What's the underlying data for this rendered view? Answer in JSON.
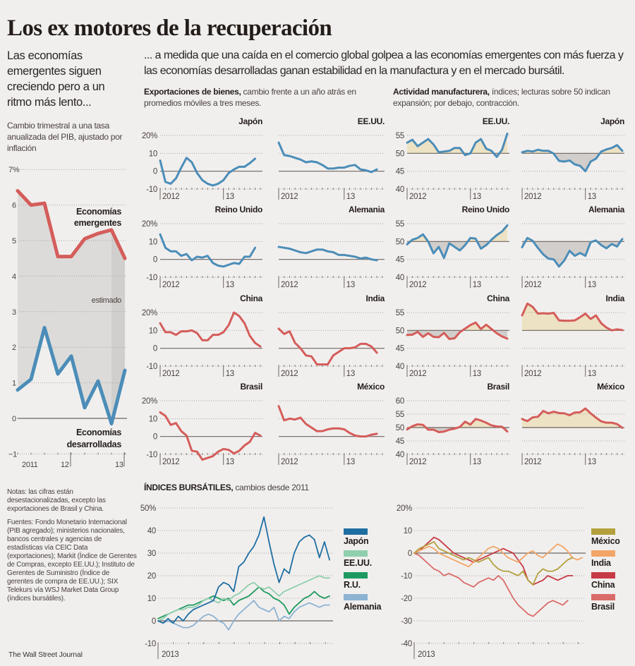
{
  "header": {
    "title": "Los ex motores de la recuperación"
  },
  "intro": {
    "left": "Las economías emergentes siguen creciendo pero a un ritmo más lento...",
    "right": "... a medida que una caída en el comercio global golpea a las economías emergentes con más fuerza y las economías desarrolladas ganan estabilidad en la manufactura y en el mercado bursátil."
  },
  "sections": {
    "gdp_subtitle": "Cambio trimestral a una tasa anualizada del PIB, ajustado por inflación",
    "exports_bold": "Exportaciones de bienes,",
    "exports_rest": " cambio frente a un año atrás en promedios móviles a tres meses.",
    "pmi_bold": "Actividad manufacturera,",
    "pmi_rest": " índices; lecturas sobre 50 indican expansión; por debajo, contracción.",
    "stocks_bold": "ÍNDICES BURSÁTILES,",
    "stocks_rest": " cambios desde 2011"
  },
  "notes": {
    "notes": "Notas: las cifras están desestacionalizadas, excepto las exportaciones de Brasil y China.",
    "sources": "Fuentes: Fondo Monetario Internacional (PIB agregado); ministerios nacionales, bancos centrales y agencias de estadísticas vía CEIC Data (exportaciones); Markit (Índice de Gerentes de Compras, excepto EE.UU.); Instituto de Gerentes de Suministro (Índice de gerentes de compra de EE.UU.); SIX Telekurs vía WSJ Market Data Group (índices bursátiles).",
    "credit": "The Wall Street Journal"
  },
  "colors": {
    "blue": "#4b8db8",
    "red": "#d45d5a",
    "above_fill": "#ede2c3",
    "below_fill": "#d2cecb",
    "band": "#dddbd9",
    "band_estimate": "#d1cfcd"
  },
  "chart_data": [
    {
      "id": "gdp",
      "type": "line",
      "ylim": [
        -1,
        7
      ],
      "yticks": [
        -1,
        0,
        1,
        2,
        3,
        4,
        5,
        6,
        7
      ],
      "ytick_labels": [
        "−1",
        "0",
        "1",
        "2",
        "3",
        "4",
        "5",
        "6",
        "7%"
      ],
      "xtick_labels": [
        "2011",
        "12",
        "13"
      ],
      "annotation": "estimado",
      "series": [
        {
          "name": "Economías emergentes",
          "color": "#d45d5a",
          "values": [
            6.4,
            6.0,
            6.05,
            4.55,
            4.55,
            5.05,
            5.2,
            5.3,
            4.5
          ]
        },
        {
          "name": "Economías desarrolladas",
          "color": "#4b8db8",
          "values": [
            0.8,
            1.1,
            2.55,
            1.25,
            1.75,
            0.3,
            1.05,
            -0.15,
            1.35
          ]
        }
      ]
    },
    {
      "id": "exports",
      "type": "line",
      "ylim": [
        -10,
        20
      ],
      "yticks": [
        -10,
        0,
        10,
        20
      ],
      "ytick_labels": [
        "-10",
        "0",
        "10",
        "20%"
      ],
      "baseline": 0,
      "xtick_labels": [
        "2012",
        "13"
      ],
      "panels": [
        {
          "title": "Japón",
          "color": "#4b8db8",
          "values": [
            6,
            -6,
            -7,
            -4,
            2,
            7.5,
            5,
            -1,
            -5,
            -7,
            -8,
            -7,
            -5,
            -1,
            1,
            2.5,
            2.5,
            4.5,
            7
          ]
        },
        {
          "title": "EE.UU.",
          "color": "#4b8db8",
          "values": [
            16,
            9,
            8.5,
            7.5,
            6.5,
            5,
            5.5,
            5,
            3.5,
            1.5,
            1.5,
            2,
            2,
            3,
            3.5,
            1,
            0.5,
            -0.5,
            1
          ]
        },
        {
          "title": "Reino Unido",
          "color": "#4b8db8",
          "values": [
            14,
            6.5,
            4.5,
            4.5,
            2,
            3,
            -0.5,
            1.5,
            1,
            2,
            -2,
            -3.5,
            -4,
            -3,
            -2,
            -2.5,
            1.5,
            1.5,
            6.5
          ]
        },
        {
          "title": "Alemania",
          "color": "#4b8db8",
          "values": [
            7,
            6.5,
            6,
            5,
            4,
            3.5,
            4.5,
            5.5,
            5.5,
            4.5,
            4,
            2.5,
            2.5,
            2,
            1.5,
            0.5,
            1,
            0,
            -0.5
          ]
        },
        {
          "title": "China",
          "color": "#d45d5a",
          "values": [
            14,
            9,
            9,
            7.5,
            9.5,
            9.5,
            10,
            8.5,
            4.5,
            4.5,
            7.5,
            7.5,
            9,
            13,
            20,
            18,
            14,
            7,
            3,
            1
          ]
        },
        {
          "title": "India",
          "color": "#d45d5a",
          "values": [
            11,
            8,
            9.5,
            3,
            0,
            -4,
            -4.5,
            -9,
            -9,
            -9,
            -4,
            -2,
            0,
            0,
            0.5,
            2.5,
            2.5,
            1,
            -2.5
          ]
        },
        {
          "title": "Brasil",
          "color": "#d45d5a",
          "values": [
            13.5,
            11.5,
            6.5,
            7.5,
            3,
            0.5,
            -8,
            -8.5,
            -13,
            -12,
            -11,
            -8.5,
            -7,
            -7.5,
            -9.5,
            -8,
            -5,
            -3,
            2,
            0.5
          ]
        },
        {
          "title": "México",
          "color": "#d45d5a",
          "values": [
            17,
            9,
            10,
            9.5,
            10.5,
            7,
            5,
            3,
            3,
            4,
            4.5,
            4.5,
            4,
            2,
            0.5,
            0,
            0,
            1,
            1.5
          ]
        }
      ]
    },
    {
      "id": "manufacturing",
      "type": "area",
      "baseline": 50,
      "xtick_labels": [
        "2012",
        "13"
      ],
      "panels": [
        {
          "title": "EE.UU.",
          "color": "#4b8db8",
          "ylim": [
            40,
            55
          ],
          "yticks": [
            40,
            45,
            50,
            55
          ],
          "values": [
            53,
            53.8,
            52,
            53,
            54,
            52.5,
            50.3,
            50.5,
            50.7,
            51.5,
            51.5,
            49.5,
            50,
            53,
            54,
            51.3,
            50.7,
            49,
            51,
            55.5
          ]
        },
        {
          "title": "Japón",
          "color": "#4b8db8",
          "ylim": [
            40,
            55
          ],
          "yticks": [
            40,
            45,
            50,
            55
          ],
          "values": [
            50.3,
            50.7,
            50.5,
            51,
            50.7,
            50.7,
            49.9,
            47.9,
            47.7,
            48,
            46.9,
            46.5,
            45,
            47.7,
            48.5,
            50.5,
            51.1,
            51.5,
            52.3,
            50.7
          ]
        },
        {
          "title": "Reino Unido",
          "color": "#4b8db8",
          "ylim": [
            40,
            55
          ],
          "yticks": [
            40,
            45,
            50,
            55
          ],
          "values": [
            49.2,
            50.5,
            51,
            52,
            50,
            46.7,
            48.5,
            45.4,
            49.5,
            48.5,
            47.5,
            49,
            51,
            50.8,
            48,
            49,
            50.5,
            51.8,
            52.8,
            54.5
          ]
        },
        {
          "title": "Alemania",
          "color": "#4b8db8",
          "ylim": [
            40,
            55
          ],
          "yticks": [
            40,
            45,
            50,
            55
          ],
          "values": [
            48.4,
            51,
            50.2,
            48.2,
            46.4,
            45.2,
            45,
            43,
            44.7,
            47.4,
            46,
            46.8,
            46,
            49.8,
            50.3,
            49,
            48.1,
            49.3,
            48.6,
            50.7
          ]
        },
        {
          "title": "China",
          "color": "#d45d5a",
          "ylim": [
            40,
            55
          ],
          "yticks": [
            40,
            45,
            50,
            55
          ],
          "values": [
            48.7,
            48.8,
            49.6,
            48.2,
            49.2,
            48.2,
            48.1,
            49.3,
            47.6,
            47.8,
            49.5,
            50.5,
            51.5,
            52.2,
            50.4,
            51.6,
            50.4,
            49.2,
            48.3,
            47.7
          ]
        },
        {
          "title": "India",
          "color": "#d45d5a",
          "ylim": [
            40,
            55
          ],
          "yticks": [
            40,
            45,
            50,
            55
          ],
          "values": [
            54.2,
            57.5,
            56.6,
            54.7,
            54.8,
            54.7,
            54.9,
            52.8,
            52.7,
            52.7,
            52.8,
            53.7,
            54.7,
            53.2,
            54.2,
            52,
            50.8,
            50,
            50.3,
            50.1
          ]
        },
        {
          "title": "Brasil",
          "color": "#d45d5a",
          "ylim": [
            40,
            60
          ],
          "yticks": [
            40,
            45,
            50,
            55,
            60
          ],
          "values": [
            49.3,
            50.5,
            51.2,
            51,
            49.2,
            49.2,
            48.3,
            48.5,
            49.2,
            49.6,
            50.2,
            52.2,
            51.1,
            53.2,
            52.6,
            51.8,
            50.8,
            50.4,
            50.3,
            48.5
          ]
        },
        {
          "title": "México",
          "color": "#d45d5a",
          "ylim": [
            40,
            60
          ],
          "yticks": [
            40,
            45,
            50,
            55,
            60
          ],
          "values": [
            53.2,
            52.4,
            53.8,
            54,
            56.2,
            55.3,
            55.9,
            55.4,
            55.3,
            54.6,
            55.6,
            55.7,
            57.1,
            55.3,
            53.7,
            52.3,
            51.8,
            51.8,
            51.3,
            49.9
          ]
        }
      ]
    },
    {
      "id": "stocks_developed",
      "type": "line",
      "ylim": [
        -10,
        50
      ],
      "yticks": [
        -10,
        0,
        10,
        20,
        30,
        40,
        50
      ],
      "ytick_labels": [
        "-10",
        "0",
        "10",
        "20",
        "30",
        "40",
        "50%"
      ],
      "xtick_labels": [
        "2013"
      ],
      "legend": "right",
      "series": [
        {
          "name": "Japón",
          "color": "#1f6ea2",
          "values": [
            0,
            -1,
            1,
            -1,
            2,
            0,
            3,
            5,
            6,
            7,
            8,
            9,
            15,
            17,
            16,
            13,
            24,
            26,
            30,
            33,
            38,
            46,
            35,
            25,
            17,
            23,
            21,
            30,
            35,
            37,
            38,
            36,
            28,
            35,
            27
          ]
        },
        {
          "name": "EE.UU.",
          "color": "#8fcfad",
          "values": [
            0,
            1,
            3,
            4,
            5,
            5,
            6,
            6,
            7,
            9,
            10,
            9,
            8,
            10,
            9,
            11,
            12,
            14,
            16,
            17,
            15,
            14,
            15,
            13,
            11,
            13,
            14,
            15,
            16,
            17,
            18,
            19,
            20,
            19,
            19
          ]
        },
        {
          "name": "R.U.",
          "color": "#1f9a5f",
          "values": [
            1,
            2,
            3,
            4,
            5,
            6,
            7,
            7,
            8,
            9,
            10,
            11,
            10,
            9,
            10,
            7,
            9,
            10,
            11,
            13,
            15,
            13,
            12,
            10,
            9,
            7,
            3,
            6,
            8,
            10,
            11,
            13,
            11,
            10,
            11
          ]
        },
        {
          "name": "Alemania",
          "color": "#8db3d2",
          "values": [
            0,
            -1,
            0,
            -1,
            -2,
            -3,
            -3,
            -2,
            0,
            2,
            3,
            2,
            0,
            -1,
            -4,
            0,
            3,
            5,
            7,
            9,
            6,
            5,
            4,
            6,
            0,
            2,
            1,
            4,
            6,
            7,
            8,
            7,
            6,
            7,
            7
          ]
        }
      ]
    },
    {
      "id": "stocks_emerging",
      "type": "line",
      "ylim": [
        -40,
        20
      ],
      "yticks": [
        -40,
        -30,
        -20,
        -10,
        0,
        10,
        20
      ],
      "ytick_labels": [
        "-40",
        "-30",
        "-20",
        "-10",
        "0",
        "10",
        "20%"
      ],
      "xtick_labels": [
        "2013"
      ],
      "legend": "right",
      "series": [
        {
          "name": "México",
          "color": "#b3a03c",
          "values": [
            0,
            2,
            3,
            4,
            5,
            2,
            1,
            0,
            -1,
            -2,
            -3,
            -2,
            -3,
            -4,
            -3,
            -2,
            -5,
            -7,
            -8,
            -8,
            -9,
            -10,
            -8,
            -12,
            -14,
            -9,
            -7,
            -8,
            -8,
            -7,
            -5,
            -3,
            -2
          ]
        },
        {
          "name": "India",
          "color": "#f2a566",
          "values": [
            0,
            1,
            2,
            3,
            2,
            0,
            -1,
            -2,
            -3,
            -4,
            -5,
            -6,
            -4,
            -2,
            0,
            2,
            3,
            2,
            0,
            -2,
            -3,
            -4,
            -2,
            0,
            1,
            -1,
            -2,
            0,
            2,
            4,
            3,
            1,
            -2,
            -3,
            -2
          ]
        },
        {
          "name": "China",
          "color": "#c63a45",
          "values": [
            0,
            1,
            3,
            5,
            7,
            6,
            4,
            2,
            0,
            -1,
            -2,
            -3,
            -4,
            -3,
            -2,
            -1,
            0,
            1,
            2,
            1,
            0,
            -3,
            -6,
            -12,
            -14,
            -13,
            -12,
            -10,
            -11,
            -12,
            -11,
            -10,
            -10
          ]
        },
        {
          "name": "Brasil",
          "color": "#d96b69",
          "values": [
            0,
            -1,
            -3,
            -5,
            -7,
            -8,
            -10,
            -9,
            -10,
            -11,
            -13,
            -14,
            -15,
            -13,
            -12,
            -11,
            -12,
            -10,
            -12,
            -16,
            -20,
            -23,
            -25,
            -27,
            -28,
            -26,
            -24,
            -22,
            -21,
            -22,
            -23,
            -21
          ]
        }
      ]
    }
  ]
}
